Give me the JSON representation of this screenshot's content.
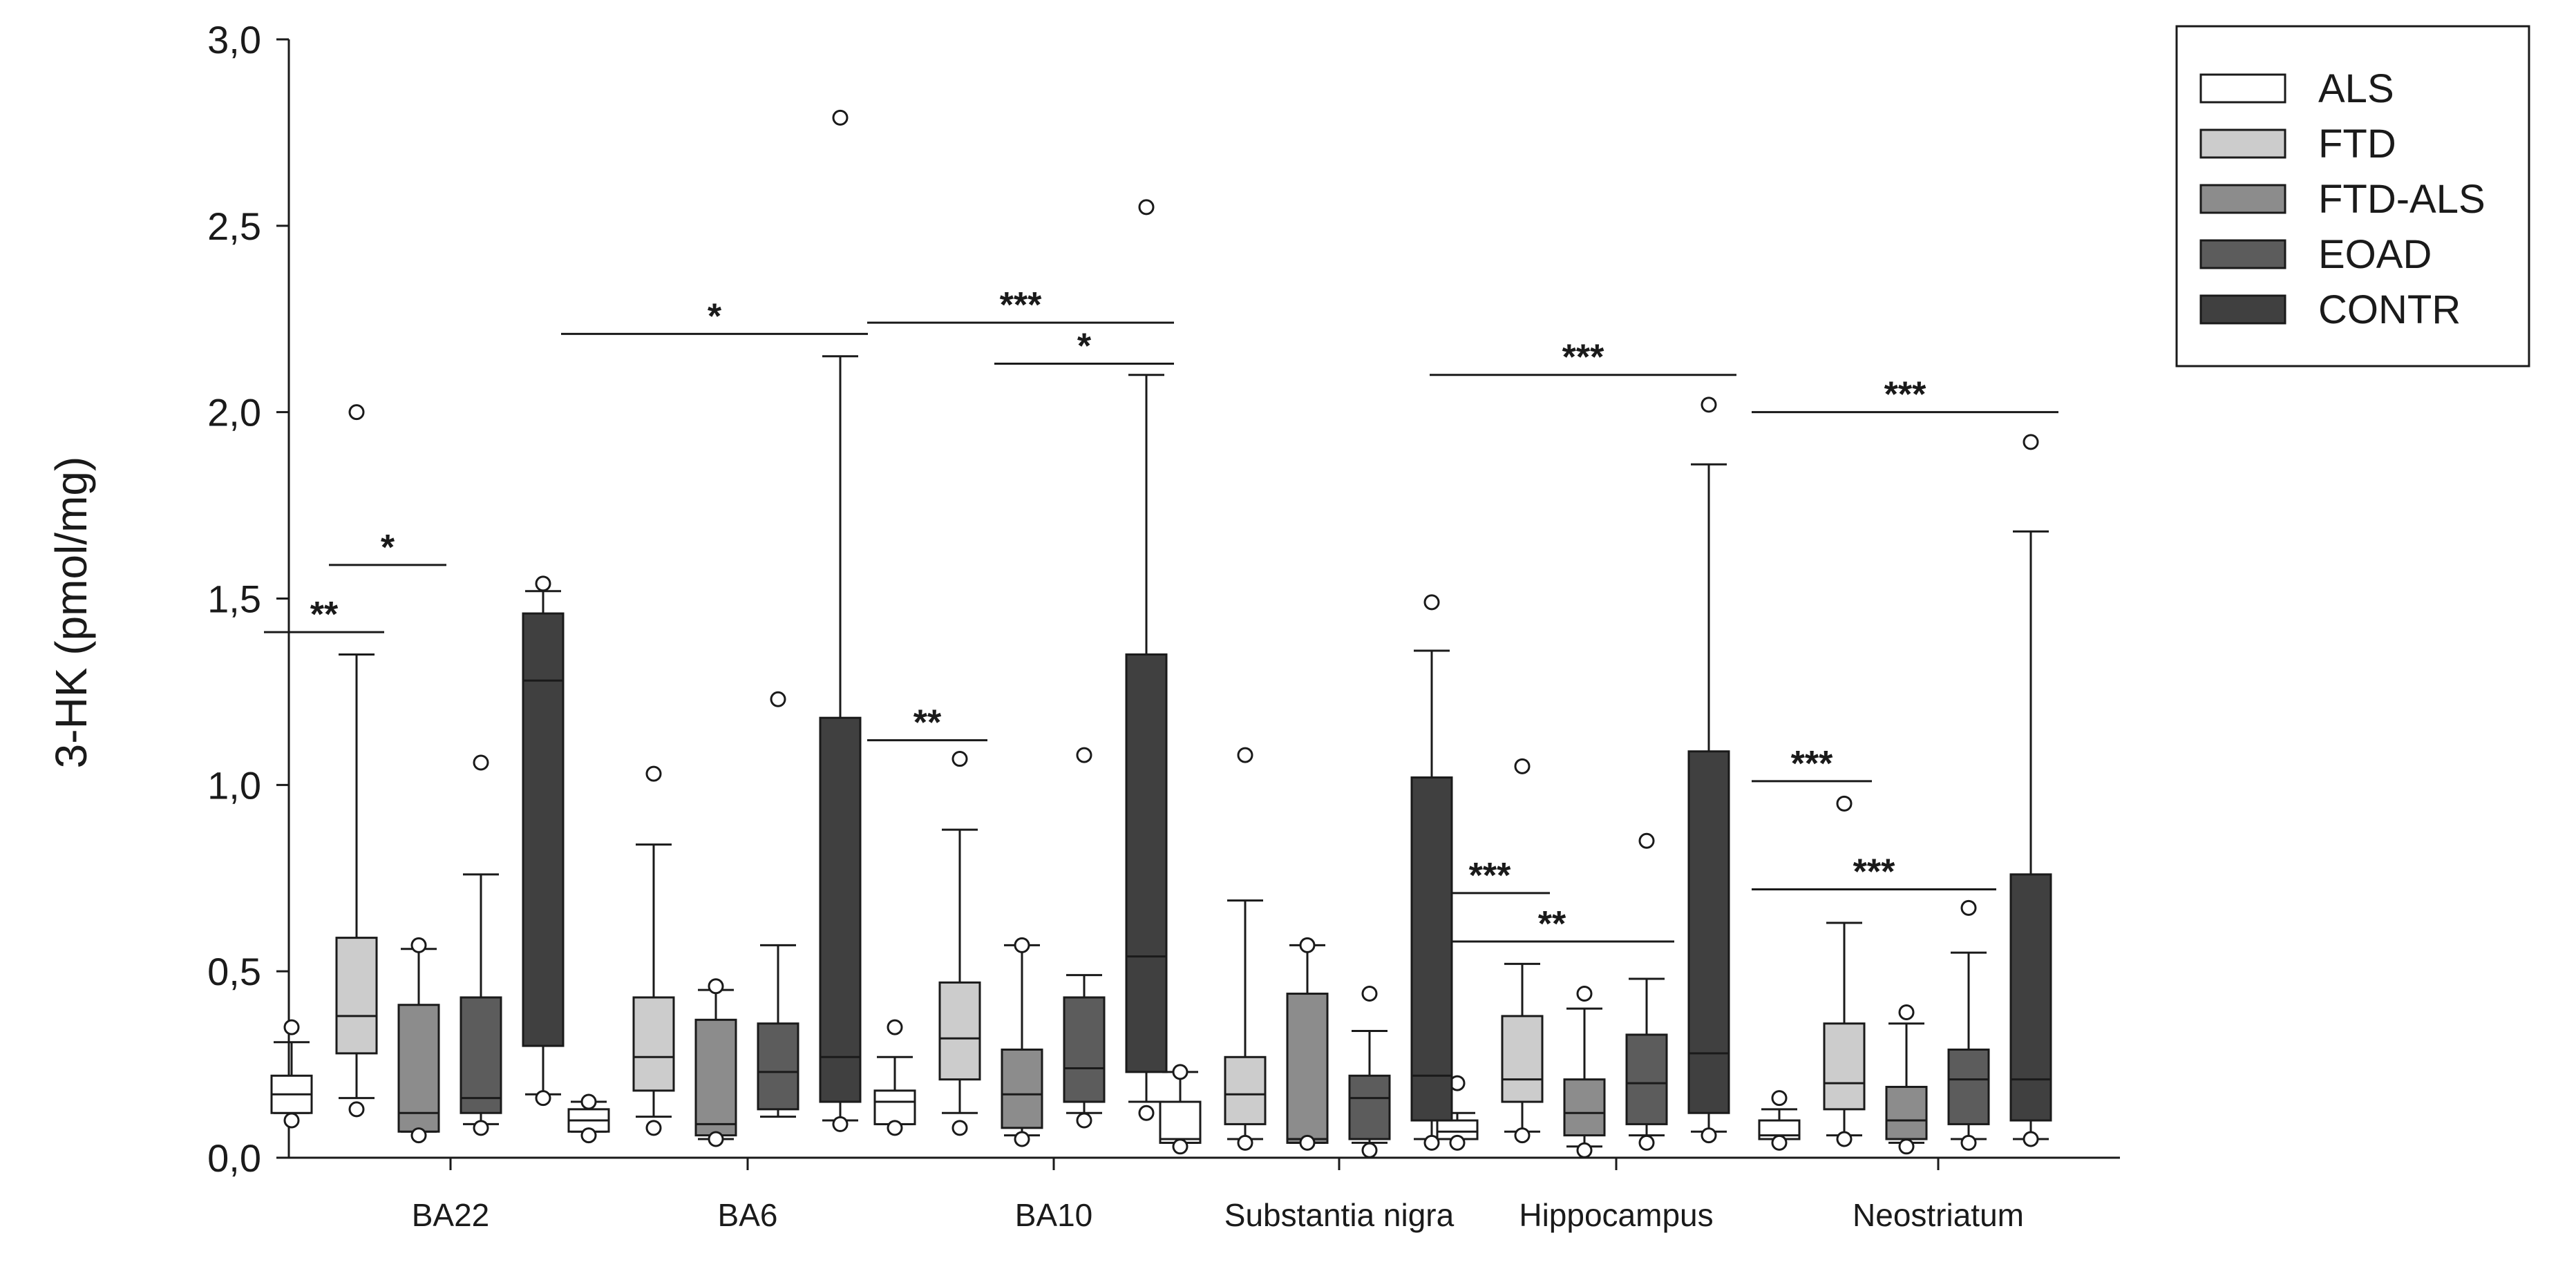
{
  "chart_data": {
    "type": "boxplot",
    "title": "",
    "xlabel": "",
    "ylabel": "3-HK (pmol/mg)",
    "ylim": [
      0,
      3.0
    ],
    "yticks": [
      0,
      0.5,
      1.0,
      1.5,
      2.0,
      2.5,
      3.0
    ],
    "ytick_labels": [
      "0,0",
      "0,5",
      "1,0",
      "1,5",
      "2,0",
      "2,5",
      "3,0"
    ],
    "categories": [
      "BA22",
      "BA6",
      "BA10",
      "Substantia nigra",
      "Hippocampus",
      "Neostriatum"
    ],
    "legend_position": "top-right",
    "series": [
      {
        "name": "ALS",
        "color": "#ffffff",
        "boxes": [
          {
            "q1": 0.12,
            "median": 0.17,
            "q3": 0.22,
            "lower": 0.12,
            "upper": 0.31,
            "outliers": [
              0.35,
              0.1
            ]
          },
          {
            "q1": 0.07,
            "median": 0.1,
            "q3": 0.13,
            "lower": 0.07,
            "upper": 0.15,
            "outliers": [
              0.15,
              0.06
            ]
          },
          {
            "q1": 0.09,
            "median": 0.15,
            "q3": 0.18,
            "lower": 0.09,
            "upper": 0.27,
            "outliers": [
              0.35,
              0.08
            ]
          },
          {
            "q1": 0.04,
            "median": 0.05,
            "q3": 0.15,
            "lower": 0.04,
            "upper": 0.23,
            "outliers": [
              0.23,
              0.03
            ]
          },
          {
            "q1": 0.05,
            "median": 0.07,
            "q3": 0.1,
            "lower": 0.05,
            "upper": 0.12,
            "outliers": [
              0.2,
              0.04
            ]
          },
          {
            "q1": 0.05,
            "median": 0.06,
            "q3": 0.1,
            "lower": 0.05,
            "upper": 0.13,
            "outliers": [
              0.16,
              0.04
            ]
          }
        ]
      },
      {
        "name": "FTD",
        "color": "#cccccc",
        "boxes": [
          {
            "q1": 0.28,
            "median": 0.38,
            "q3": 0.59,
            "lower": 0.16,
            "upper": 1.35,
            "outliers": [
              2.0,
              0.13
            ]
          },
          {
            "q1": 0.18,
            "median": 0.27,
            "q3": 0.43,
            "lower": 0.11,
            "upper": 0.84,
            "outliers": [
              1.03,
              0.08
            ]
          },
          {
            "q1": 0.21,
            "median": 0.32,
            "q3": 0.47,
            "lower": 0.12,
            "upper": 0.88,
            "outliers": [
              1.07,
              0.08
            ]
          },
          {
            "q1": 0.09,
            "median": 0.17,
            "q3": 0.27,
            "lower": 0.05,
            "upper": 0.69,
            "outliers": [
              1.08,
              0.04
            ]
          },
          {
            "q1": 0.15,
            "median": 0.21,
            "q3": 0.38,
            "lower": 0.07,
            "upper": 0.52,
            "outliers": [
              1.05,
              0.06
            ]
          },
          {
            "q1": 0.13,
            "median": 0.2,
            "q3": 0.36,
            "lower": 0.06,
            "upper": 0.63,
            "outliers": [
              0.95,
              0.05
            ]
          }
        ]
      },
      {
        "name": "FTD-ALS",
        "color": "#8c8c8c",
        "boxes": [
          {
            "q1": 0.07,
            "median": 0.12,
            "q3": 0.41,
            "lower": 0.07,
            "upper": 0.56,
            "outliers": [
              0.57,
              0.06
            ]
          },
          {
            "q1": 0.06,
            "median": 0.09,
            "q3": 0.37,
            "lower": 0.05,
            "upper": 0.45,
            "outliers": [
              0.46,
              0.05
            ]
          },
          {
            "q1": 0.08,
            "median": 0.17,
            "q3": 0.29,
            "lower": 0.06,
            "upper": 0.57,
            "outliers": [
              0.57,
              0.05
            ]
          },
          {
            "q1": 0.04,
            "median": 0.05,
            "q3": 0.44,
            "lower": 0.04,
            "upper": 0.57,
            "outliers": [
              0.57,
              0.04
            ]
          },
          {
            "q1": 0.06,
            "median": 0.12,
            "q3": 0.21,
            "lower": 0.03,
            "upper": 0.4,
            "outliers": [
              0.44,
              0.02
            ]
          },
          {
            "q1": 0.05,
            "median": 0.1,
            "q3": 0.19,
            "lower": 0.04,
            "upper": 0.36,
            "outliers": [
              0.39,
              0.03
            ]
          }
        ]
      },
      {
        "name": "EOAD",
        "color": "#5c5c5c",
        "boxes": [
          {
            "q1": 0.12,
            "median": 0.16,
            "q3": 0.43,
            "lower": 0.09,
            "upper": 0.76,
            "outliers": [
              1.06,
              0.08
            ]
          },
          {
            "q1": 0.13,
            "median": 0.23,
            "q3": 0.36,
            "lower": 0.11,
            "upper": 0.57,
            "outliers": [
              1.23
            ]
          },
          {
            "q1": 0.15,
            "median": 0.24,
            "q3": 0.43,
            "lower": 0.12,
            "upper": 0.49,
            "outliers": [
              1.08,
              0.1
            ]
          },
          {
            "q1": 0.05,
            "median": 0.16,
            "q3": 0.22,
            "lower": 0.04,
            "upper": 0.34,
            "outliers": [
              0.44,
              0.02
            ]
          },
          {
            "q1": 0.09,
            "median": 0.2,
            "q3": 0.33,
            "lower": 0.06,
            "upper": 0.48,
            "outliers": [
              0.85,
              0.04
            ]
          },
          {
            "q1": 0.09,
            "median": 0.21,
            "q3": 0.29,
            "lower": 0.05,
            "upper": 0.55,
            "outliers": [
              0.67,
              0.04
            ]
          }
        ]
      },
      {
        "name": "CONTR",
        "color": "#404040",
        "boxes": [
          {
            "q1": 0.3,
            "median": 1.28,
            "q3": 1.46,
            "lower": 0.17,
            "upper": 1.52,
            "outliers": [
              1.54,
              0.16
            ]
          },
          {
            "q1": 0.15,
            "median": 0.27,
            "q3": 1.18,
            "lower": 0.1,
            "upper": 2.15,
            "outliers": [
              2.79,
              0.09
            ]
          },
          {
            "q1": 0.23,
            "median": 0.54,
            "q3": 1.35,
            "lower": 0.15,
            "upper": 2.1,
            "outliers": [
              2.55,
              0.12
            ]
          },
          {
            "q1": 0.1,
            "median": 0.22,
            "q3": 1.02,
            "lower": 0.05,
            "upper": 1.36,
            "outliers": [
              1.49,
              0.04
            ]
          },
          {
            "q1": 0.12,
            "median": 0.28,
            "q3": 1.09,
            "lower": 0.07,
            "upper": 1.86,
            "outliers": [
              2.02,
              0.06
            ]
          },
          {
            "q1": 0.1,
            "median": 0.21,
            "q3": 0.76,
            "lower": 0.05,
            "upper": 1.68,
            "outliers": [
              1.92,
              0.05
            ]
          }
        ]
      }
    ],
    "annotations": [
      {
        "category": 0,
        "from": "ALS",
        "to": "FTD",
        "y": 1.41,
        "label": "**"
      },
      {
        "category": 0,
        "from": "FTD",
        "to": "FTD-ALS",
        "y": 1.59,
        "label": "*"
      },
      {
        "category": 1,
        "from": "ALS",
        "to": "CONTR",
        "y": 2.21,
        "label": "*"
      },
      {
        "category": 2,
        "from": "ALS",
        "to": "CONTR",
        "y": 2.24,
        "label": "***"
      },
      {
        "category": 2,
        "from": "FTD-ALS",
        "to": "CONTR",
        "y": 2.13,
        "label": "*"
      },
      {
        "category": 2,
        "from": "ALS",
        "to": "FTD",
        "y": 1.12,
        "label": "**"
      },
      {
        "category": 4,
        "from": "ALS",
        "to": "CONTR",
        "y": 2.1,
        "label": "***"
      },
      {
        "category": 4,
        "from": "ALS",
        "to": "FTD",
        "y": 0.71,
        "label": "***"
      },
      {
        "category": 4,
        "from": "ALS",
        "to": "EOAD",
        "y": 0.58,
        "label": "**"
      },
      {
        "category": 5,
        "from": "ALS",
        "to": "CONTR",
        "y": 2.0,
        "label": "***"
      },
      {
        "category": 5,
        "from": "ALS",
        "to": "FTD",
        "y": 1.01,
        "label": "***"
      },
      {
        "category": 5,
        "from": "ALS",
        "to": "EOAD",
        "y": 0.72,
        "label": "***"
      }
    ]
  }
}
